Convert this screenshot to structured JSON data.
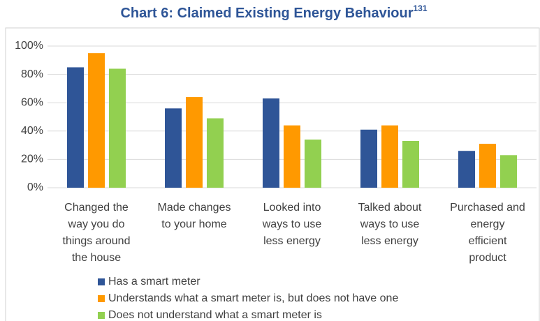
{
  "chart_data": {
    "type": "bar",
    "title": "Chart 6: Claimed Existing Energy Behaviour",
    "title_superscript": "131",
    "categories": [
      "Changed the way you do things around the house",
      "Made changes to your home",
      "Looked into ways to use less energy",
      "Talked about ways to use less energy",
      "Purchased and energy efficient product"
    ],
    "series": [
      {
        "name": "Has a smart meter",
        "color": "#2f5597",
        "values": [
          85,
          56,
          63,
          41,
          26
        ]
      },
      {
        "name": "Understands what a smart meter is, but does not have one",
        "color": "#ff9900",
        "values": [
          95,
          64,
          44,
          44,
          31
        ]
      },
      {
        "name": "Does not understand what a smart meter is",
        "color": "#92d050",
        "values": [
          84,
          49,
          34,
          33,
          23
        ]
      }
    ],
    "ylim": [
      0,
      100
    ],
    "yticks": [
      {
        "value": 0,
        "label": "0%"
      },
      {
        "value": 20,
        "label": "20%"
      },
      {
        "value": 40,
        "label": "40%"
      },
      {
        "value": 60,
        "label": "60%"
      },
      {
        "value": 80,
        "label": "80%"
      },
      {
        "value": 100,
        "label": "100%"
      }
    ],
    "grid": true,
    "legend": "bottom"
  }
}
